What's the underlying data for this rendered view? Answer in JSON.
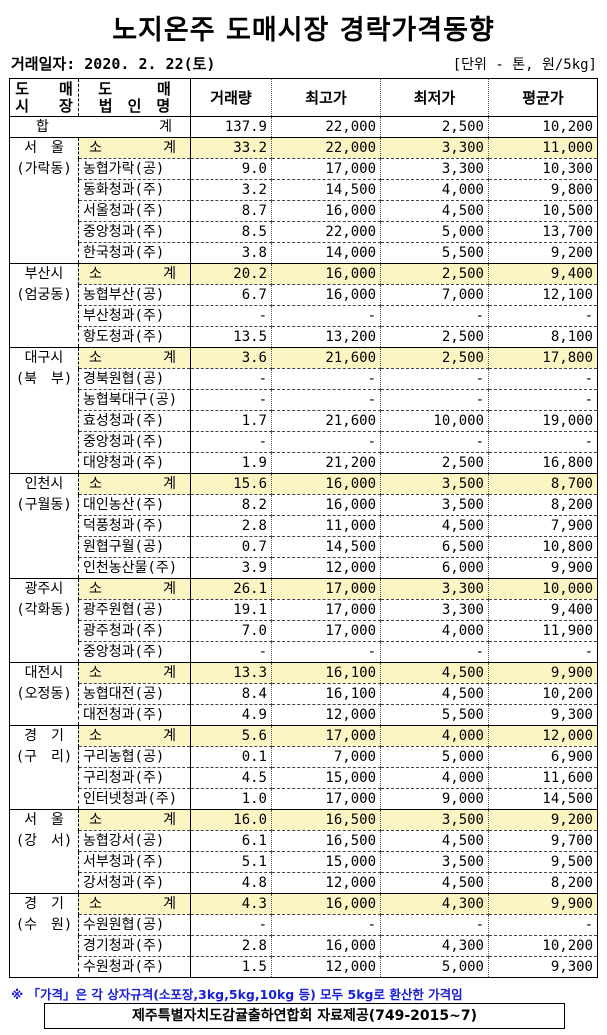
{
  "title": "노지온주 도매시장 경락가격동향",
  "date_label": "거래일자: 2020. 2. 22(토)",
  "unit_label": "[단위 - 톤, 원/5kg]",
  "headers": {
    "market": [
      "도　　매",
      "시　　장"
    ],
    "corp": [
      "도　　　매",
      "법　인　명"
    ],
    "qty": "거래량",
    "max": "최고가",
    "min": "최저가",
    "avg": "평균가"
  },
  "total": {
    "label_left": "합",
    "label_right": "계",
    "qty": "137.9",
    "max": "22,000",
    "min": "2,500",
    "avg": "10,200"
  },
  "subtotal_label": [
    "소",
    "계"
  ],
  "groups": [
    {
      "market": [
        "서　울",
        "(가락동)"
      ],
      "rows": [
        {
          "corp": "소계",
          "qty": "33.2",
          "max": "22,000",
          "min": "3,300",
          "avg": "11,000"
        },
        {
          "corp": "농협가락(공)",
          "qty": "9.0",
          "max": "17,000",
          "min": "3,300",
          "avg": "10,300"
        },
        {
          "corp": "동화청과(주)",
          "qty": "3.2",
          "max": "14,500",
          "min": "4,000",
          "avg": "9,800"
        },
        {
          "corp": "서울청과(주)",
          "qty": "8.7",
          "max": "16,000",
          "min": "4,500",
          "avg": "10,500"
        },
        {
          "corp": "중앙청과(주)",
          "qty": "8.5",
          "max": "22,000",
          "min": "5,000",
          "avg": "13,700"
        },
        {
          "corp": "한국청과(주)",
          "qty": "3.8",
          "max": "14,000",
          "min": "5,500",
          "avg": "9,200"
        }
      ]
    },
    {
      "market": [
        "부산시",
        "(엄궁동)"
      ],
      "rows": [
        {
          "corp": "소계",
          "qty": "20.2",
          "max": "16,000",
          "min": "2,500",
          "avg": "9,400"
        },
        {
          "corp": "농협부산(공)",
          "qty": "6.7",
          "max": "16,000",
          "min": "7,000",
          "avg": "12,100"
        },
        {
          "corp": "부산청과(주)",
          "qty": "-",
          "max": "-",
          "min": "-",
          "avg": "-"
        },
        {
          "corp": "항도청과(주)",
          "qty": "13.5",
          "max": "13,200",
          "min": "2,500",
          "avg": "8,100"
        }
      ]
    },
    {
      "market": [
        "대구시",
        "(북　부)"
      ],
      "rows": [
        {
          "corp": "소계",
          "qty": "3.6",
          "max": "21,600",
          "min": "2,500",
          "avg": "17,800"
        },
        {
          "corp": "경북원협(공)",
          "qty": "-",
          "max": "-",
          "min": "-",
          "avg": "-"
        },
        {
          "corp": "농협북대구(공)",
          "qty": "-",
          "max": "-",
          "min": "-",
          "avg": "-"
        },
        {
          "corp": "효성청과(주)",
          "qty": "1.7",
          "max": "21,600",
          "min": "10,000",
          "avg": "19,000"
        },
        {
          "corp": "중앙청과(주)",
          "qty": "-",
          "max": "-",
          "min": "-",
          "avg": "-"
        },
        {
          "corp": "대양청과(주)",
          "qty": "1.9",
          "max": "21,200",
          "min": "2,500",
          "avg": "16,800"
        }
      ]
    },
    {
      "market": [
        "인천시",
        "(구월동)"
      ],
      "rows": [
        {
          "corp": "소계",
          "qty": "15.6",
          "max": "16,000",
          "min": "3,500",
          "avg": "8,700"
        },
        {
          "corp": "대인농산(주)",
          "qty": "8.2",
          "max": "16,000",
          "min": "3,500",
          "avg": "8,200"
        },
        {
          "corp": "덕풍청과(주)",
          "qty": "2.8",
          "max": "11,000",
          "min": "4,500",
          "avg": "7,900"
        },
        {
          "corp": "원협구월(공)",
          "qty": "0.7",
          "max": "14,500",
          "min": "6,500",
          "avg": "10,800"
        },
        {
          "corp": "인천농산물(주)",
          "qty": "3.9",
          "max": "12,000",
          "min": "6,000",
          "avg": "9,900"
        }
      ]
    },
    {
      "market": [
        "광주시",
        "(각화동)"
      ],
      "rows": [
        {
          "corp": "소계",
          "qty": "26.1",
          "max": "17,000",
          "min": "3,300",
          "avg": "10,000"
        },
        {
          "corp": "광주원협(공)",
          "qty": "19.1",
          "max": "17,000",
          "min": "3,300",
          "avg": "9,400"
        },
        {
          "corp": "광주청과(주)",
          "qty": "7.0",
          "max": "17,000",
          "min": "4,000",
          "avg": "11,900"
        },
        {
          "corp": "중앙청과(주)",
          "qty": "-",
          "max": "-",
          "min": "-",
          "avg": "-"
        }
      ]
    },
    {
      "market": [
        "대전시",
        "(오정동)"
      ],
      "rows": [
        {
          "corp": "소계",
          "qty": "13.3",
          "max": "16,100",
          "min": "4,500",
          "avg": "9,900"
        },
        {
          "corp": "농협대전(공)",
          "qty": "8.4",
          "max": "16,100",
          "min": "4,500",
          "avg": "10,200"
        },
        {
          "corp": "대전청과(주)",
          "qty": "4.9",
          "max": "12,000",
          "min": "5,500",
          "avg": "9,300"
        }
      ]
    },
    {
      "market": [
        "경　기",
        "(구　리)"
      ],
      "rows": [
        {
          "corp": "소계",
          "qty": "5.6",
          "max": "17,000",
          "min": "4,000",
          "avg": "12,000"
        },
        {
          "corp": "구리농협(공)",
          "qty": "0.1",
          "max": "7,000",
          "min": "5,000",
          "avg": "6,900"
        },
        {
          "corp": "구리청과(주)",
          "qty": "4.5",
          "max": "15,000",
          "min": "4,000",
          "avg": "11,600"
        },
        {
          "corp": "인터넷청과(주)",
          "qty": "1.0",
          "max": "17,000",
          "min": "9,000",
          "avg": "14,500"
        }
      ]
    },
    {
      "market": [
        "서　울",
        "(강　서)"
      ],
      "rows": [
        {
          "corp": "소계",
          "qty": "16.0",
          "max": "16,500",
          "min": "3,500",
          "avg": "9,200"
        },
        {
          "corp": "농협강서(공)",
          "qty": "6.1",
          "max": "16,500",
          "min": "4,500",
          "avg": "9,700"
        },
        {
          "corp": "서부청과(주)",
          "qty": "5.1",
          "max": "15,000",
          "min": "3,500",
          "avg": "9,500"
        },
        {
          "corp": "강서청과(주)",
          "qty": "4.8",
          "max": "12,000",
          "min": "4,500",
          "avg": "8,200"
        }
      ]
    },
    {
      "market": [
        "경　기",
        "(수　원)"
      ],
      "rows": [
        {
          "corp": "소계",
          "qty": "4.3",
          "max": "16,000",
          "min": "4,300",
          "avg": "9,900"
        },
        {
          "corp": "수원원협(공)",
          "qty": "-",
          "max": "-",
          "min": "-",
          "avg": "-"
        },
        {
          "corp": "경기청과(주)",
          "qty": "2.8",
          "max": "16,000",
          "min": "4,300",
          "avg": "10,200"
        },
        {
          "corp": "수원청과(주)",
          "qty": "1.5",
          "max": "12,000",
          "min": "5,000",
          "avg": "9,300"
        }
      ]
    }
  ],
  "note": "※ 「가격」은 각 상자규격(소포장,3kg,5kg,10kg 등) 모두 5kg로 환산한 가격임",
  "credit": "제주특별자치도감귤출하연합회 자료제공(749-2015~7)",
  "colors": {
    "subtotal_bg": "#fbf5c4",
    "note_text": "#1a20d8"
  }
}
